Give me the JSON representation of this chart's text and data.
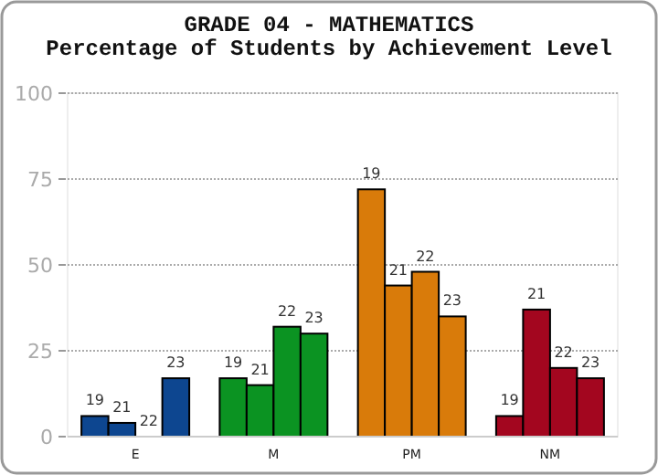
{
  "chart_data": {
    "type": "bar",
    "title": "GRADE 04 - MATHEMATICS",
    "subtitle": "Percentage of Students by Achievement Level",
    "categories": [
      "E",
      "M",
      "PM",
      "NM"
    ],
    "series": [
      {
        "name": "19",
        "colors": [
          "#0d4690",
          "#0b9322",
          "#d97b0a",
          "#a3061f"
        ],
        "values": [
          6,
          17,
          72,
          6
        ]
      },
      {
        "name": "21",
        "colors": [
          "#0d4690",
          "#0b9322",
          "#d97b0a",
          "#a3061f"
        ],
        "values": [
          4,
          15,
          44,
          37
        ]
      },
      {
        "name": "22",
        "colors": [
          "#0d4690",
          "#0b9322",
          "#d97b0a",
          "#a3061f"
        ],
        "values": [
          0,
          32,
          48,
          20
        ]
      },
      {
        "name": "23",
        "colors": [
          "#0d4690",
          "#0b9322",
          "#d97b0a",
          "#a3061f"
        ],
        "values": [
          17,
          30,
          35,
          17
        ]
      }
    ],
    "ylim": [
      0,
      100
    ],
    "yticks": [
      0,
      25,
      50,
      75,
      100
    ],
    "grid": "y"
  }
}
